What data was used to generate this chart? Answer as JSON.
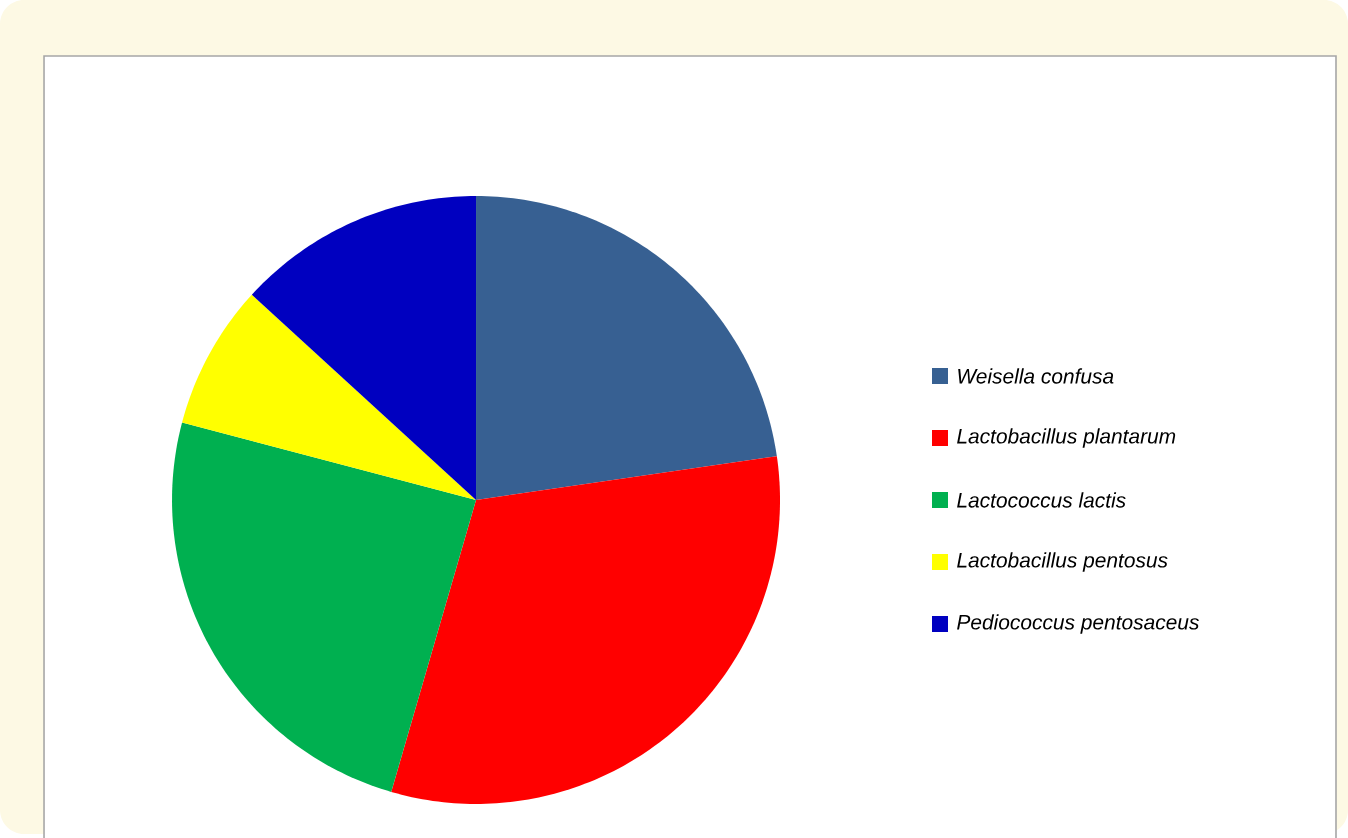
{
  "chart_data": {
    "type": "pie",
    "categories": [
      "Weisella confusa",
      "Lactobacillus plantarum",
      "Lactococcus lactis",
      "Lactobacillus pentosus",
      "Pediococcus pentosaceus"
    ],
    "values": [
      22.7,
      31.8,
      24.6,
      7.7,
      13.2
    ],
    "colors": [
      "#376092",
      "#ff0000",
      "#00b050",
      "#ffff00",
      "#0000c0"
    ],
    "legend": "right"
  }
}
